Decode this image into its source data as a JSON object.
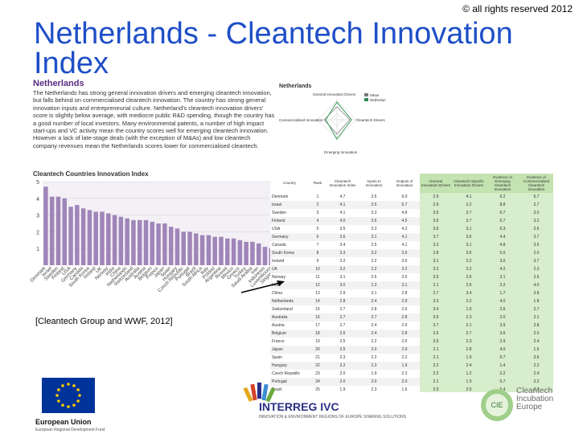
{
  "copyright": "© all rights reserved 2012",
  "slide_title": "Netherlands - Cleantech Innovation Index",
  "citation": "[Cleantech Group and WWF, 2012]",
  "report": {
    "heading": "Netherlands",
    "body": "The Netherlands has strong general innovation drivers and emerging cleantech innovation, but falls behind on commercialised cleantech innovation. The country has strong general innovation inputs and entrepreneurial culture. Netherland's cleantech innovation drivers' score is slightly below average, with mediocre public R&D spending, though the country has a good number of local investors. Many environmental patents, a number of high impact start-ups and VC activity mean the country scores well for emerging cleantech innovation. However a lack of late-stage deals (with the exception of M&As) and low cleantech company revenues mean the Netherlands scores lower for commercialised cleantech."
  },
  "radar": {
    "title": "Netherlands",
    "legend": [
      "Mean",
      "Netherlan"
    ],
    "axes": [
      "General Innovation Drivers",
      "Cleantech Drivers",
      "Emerging Innovation",
      "Commercialised Innovation"
    ]
  },
  "colors": {
    "title_blue": "#1f4fc8",
    "bar_purple": "#a085b8",
    "header_green": "#c3e3b1",
    "highlight_green": "#d7edcb"
  },
  "chart_data": {
    "type": "bar",
    "title": "Cleantech Countries Innovation Index",
    "ylim": [
      0,
      5
    ],
    "yticks": [
      "1",
      "2",
      "3",
      "4",
      "5"
    ],
    "categories": [
      "Denmark",
      "Israel",
      "Sweden",
      "Finland",
      "USA",
      "Germany",
      "Canada",
      "South Korea",
      "Ireland",
      "UK",
      "Norway",
      "India",
      "China",
      "Netherlands",
      "Switzerland",
      "Australia",
      "Austria",
      "Belgium",
      "France",
      "Japan",
      "Spain",
      "Hungary",
      "Czech Republic",
      "Portugal",
      "Brazil",
      "South Africa",
      "Italy",
      "Poland",
      "Argentina",
      "Russia",
      "Mexico",
      "Greece",
      "Turkey",
      "Saudi Arabia",
      "Iran",
      "Indonesia",
      "Luxembourg",
      "Singapore"
    ],
    "values": [
      4.7,
      4.1,
      4.1,
      4.0,
      3.5,
      3.6,
      3.4,
      3.3,
      3.2,
      3.2,
      3.1,
      3.0,
      2.9,
      2.8,
      2.7,
      2.7,
      2.7,
      2.6,
      2.5,
      2.5,
      2.3,
      2.2,
      2.0,
      2.0,
      1.9,
      1.8,
      1.8,
      1.7,
      1.7,
      1.6,
      1.6,
      1.5,
      1.4,
      1.4,
      1.3,
      1.1,
      1.0,
      0.9
    ]
  },
  "table": {
    "headers": [
      "Country",
      "Rank",
      "Cleantech Innovation Index",
      "Inputs to Innovation",
      "Outputs of Innovation",
      "General Innovation Drivers",
      "Cleantech-Specific Innovation Drivers",
      "Evidence of Emerging Cleantech Innovation",
      "Evidence of Commercialised Cleantech Innovation"
    ],
    "rows": [
      [
        "Denmark",
        "1",
        "4.7",
        "3.5",
        "6.0",
        "2.9",
        "4.1",
        "6.2",
        "5.7"
      ],
      [
        "Israel",
        "2",
        "4.1",
        "2.5",
        "5.7",
        "2.9",
        "2.2",
        "8.8",
        "2.7"
      ],
      [
        "Sweden",
        "3",
        "4.1",
        "3.3",
        "4.8",
        "3.5",
        "3.7",
        "6.7",
        "3.0"
      ],
      [
        "Finland",
        "4",
        "4.0",
        "3.6",
        "4.5",
        "3.5",
        "3.7",
        "5.7",
        "3.2"
      ],
      [
        "USA",
        "5",
        "3.5",
        "3.3",
        "4.3",
        "3.5",
        "3.1",
        "6.3",
        "2.6"
      ],
      [
        "Germany",
        "6",
        "3.6",
        "3.1",
        "4.1",
        "3.7",
        "3.6",
        "4.4",
        "3.7"
      ],
      [
        "Canada",
        "7",
        "3.4",
        "2.5",
        "4.1",
        "3.3",
        "3.1",
        "4.8",
        "3.5"
      ],
      [
        "South Korea",
        "8",
        "3.3",
        "3.2",
        "3.5",
        "2.8",
        "3.5",
        "5.0",
        "2.0"
      ],
      [
        "Ireland",
        "9",
        "3.2",
        "2.2",
        "3.6",
        "3.1",
        "2.2",
        "3.0",
        "3.7"
      ],
      [
        "UK",
        "10",
        "3.2",
        "2.2",
        "3.2",
        "3.2",
        "3.2",
        "4.2",
        "2.3"
      ],
      [
        "Norway",
        "11",
        "3.1",
        "2.6",
        "3.5",
        "3.5",
        "2.6",
        "3.1",
        "2.5"
      ],
      [
        "India",
        "12",
        "3.0",
        "2.3",
        "3.1",
        "2.1",
        "2.6",
        "2.2",
        "4.0"
      ],
      [
        "China",
        "13",
        "2.9",
        "3.1",
        "2.8",
        "2.7",
        "3.4",
        "1.7",
        "3.8"
      ],
      [
        "Netherlands",
        "14",
        "2.8",
        "2.4",
        "2.9",
        "3.3",
        "2.2",
        "4.0",
        "1.8"
      ],
      [
        "Switzerland",
        "15",
        "2.7",
        "2.8",
        "2.6",
        "3.4",
        "1.9",
        "2.6",
        "2.7"
      ],
      [
        "Australia",
        "16",
        "2.7",
        "2.7",
        "2.8",
        "3.5",
        "2.3",
        "2.0",
        "2.1"
      ],
      [
        "Austria",
        "17",
        "2.7",
        "2.4",
        "2.9",
        "3.7",
        "2.1",
        "3.9",
        "2.8"
      ],
      [
        "Belgium",
        "18",
        "2.6",
        "2.4",
        "2.8",
        "2.6",
        "2.7",
        "3.6",
        "2.0"
      ],
      [
        "France",
        "19",
        "2.5",
        "2.2",
        "2.5",
        "3.5",
        "2.3",
        "2.9",
        "2.4"
      ],
      [
        "Japan",
        "20",
        "2.5",
        "2.0",
        "2.9",
        "2.1",
        "2.8",
        "4.0",
        "1.5"
      ],
      [
        "Spain",
        "21",
        "2.3",
        "2.2",
        "2.2",
        "2.1",
        "1.9",
        "0.7",
        "3.6"
      ],
      [
        "Hungary",
        "22",
        "2.2",
        "2.3",
        "1.9",
        "2.2",
        "2.4",
        "1.4",
        "2.2"
      ],
      [
        "Czech Republic",
        "23",
        "2.0",
        "1.9",
        "2.3",
        "2.2",
        "1.2",
        "2.2",
        "2.4"
      ],
      [
        "Portugal",
        "24",
        "2.0",
        "2.0",
        "2.0",
        "2.1",
        "1.9",
        "0.7",
        "3.2"
      ],
      [
        "Brazil",
        "25",
        "1.9",
        "2.3",
        "1.6",
        "2.0",
        "2.0",
        "0.4",
        "2.7"
      ]
    ]
  },
  "logos": {
    "eu_label": "European Union",
    "eu_sub": "European Regional Development Fund",
    "interreg": "INTERREG IVC",
    "interreg_sub": "INNOVATION & ENVIRONMENT REGIONS OF EUROPE SHARING SOLUTIONS",
    "cie_mark": "CIE",
    "cie_text": [
      "Cleantech",
      "Incubation",
      "Europe"
    ]
  }
}
